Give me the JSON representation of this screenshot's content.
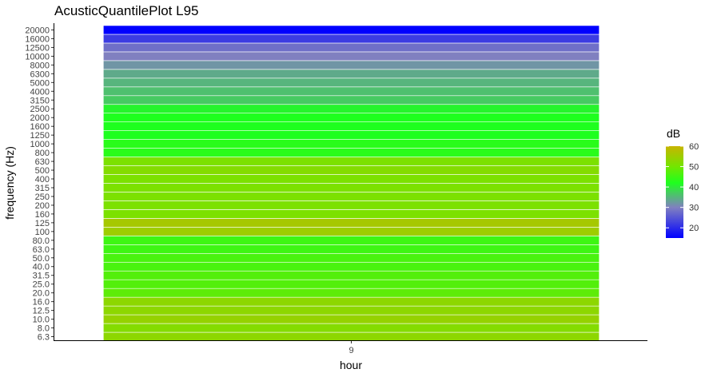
{
  "chart_data": {
    "type": "heatmap",
    "title": "AcusticQuantilePlot L95",
    "xlabel": "hour",
    "ylabel": "frequency (Hz)",
    "x_categories": [
      "9"
    ],
    "y_categories": [
      "6.3",
      "8.0",
      "10.0",
      "12.5",
      "16.0",
      "20.0",
      "25.0",
      "31.5",
      "40.0",
      "50.0",
      "63.0",
      "80.0",
      "100",
      "125",
      "160",
      "200",
      "250",
      "315",
      "400",
      "500",
      "630",
      "800",
      "1000",
      "1250",
      "1600",
      "2000",
      "2500",
      "3150",
      "4000",
      "5000",
      "6300",
      "8000",
      "10000",
      "12500",
      "16000",
      "20000"
    ],
    "values": [
      [
        53
      ],
      [
        52
      ],
      [
        54
      ],
      [
        53
      ],
      [
        53
      ],
      [
        48
      ],
      [
        47
      ],
      [
        47
      ],
      [
        46
      ],
      [
        46
      ],
      [
        45
      ],
      [
        45
      ],
      [
        55
      ],
      [
        56
      ],
      [
        51
      ],
      [
        51
      ],
      [
        51
      ],
      [
        51
      ],
      [
        51
      ],
      [
        52
      ],
      [
        51
      ],
      [
        43
      ],
      [
        43
      ],
      [
        42
      ],
      [
        42
      ],
      [
        42
      ],
      [
        41
      ],
      [
        37
      ],
      [
        36
      ],
      [
        35
      ],
      [
        34
      ],
      [
        32
      ],
      [
        30
      ],
      [
        28
      ],
      [
        22
      ],
      [
        15
      ]
    ],
    "legend": {
      "title": "dB",
      "ticks": [
        20,
        30,
        40,
        50,
        60
      ],
      "range": [
        15,
        60
      ],
      "colors": [
        {
          "value": 15,
          "color": "#0000ff"
        },
        {
          "value": 30,
          "color": "#8080c0"
        },
        {
          "value": 42,
          "color": "#1eff1e"
        },
        {
          "value": 50,
          "color": "#73e600"
        },
        {
          "value": 60,
          "color": "#c8b400"
        }
      ]
    },
    "grid": false,
    "legend_position": "right"
  }
}
